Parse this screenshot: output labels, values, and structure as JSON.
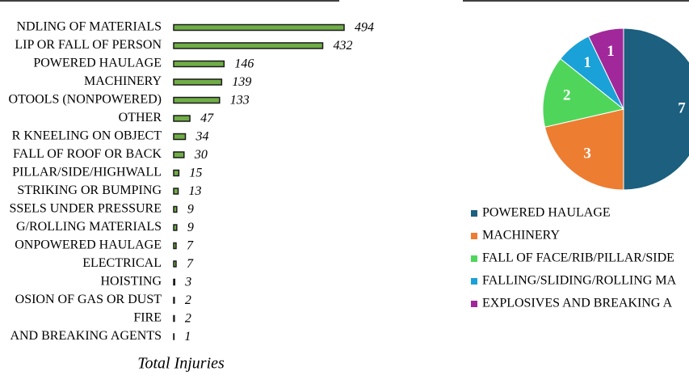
{
  "chart_data": [
    {
      "type": "hbar",
      "xlabel": "Total Injuries",
      "color": "#70ad47",
      "categories": [
        "NDLING OF MATERIALS",
        "LIP OR FALL OF PERSON",
        "POWERED HAULAGE",
        "MACHINERY",
        "OTOOLS (NONPOWERED)",
        "OTHER",
        "R KNEELING ON OBJECT",
        "FALL OF ROOF OR BACK",
        "PILLAR/SIDE/HIGHWALL",
        "STRIKING OR BUMPING",
        "SSELS UNDER PRESSURE",
        "G/ROLLING MATERIALS",
        "ONPOWERED HAULAGE",
        "ELECTRICAL",
        "HOISTING",
        "OSION OF GAS OR DUST",
        "FIRE",
        "AND BREAKING AGENTS"
      ],
      "values": [
        494,
        432,
        146,
        139,
        133,
        47,
        34,
        30,
        15,
        13,
        9,
        9,
        7,
        7,
        3,
        2,
        2,
        1
      ]
    },
    {
      "type": "pie",
      "categories": [
        "POWERED HAULAGE",
        "MACHINERY",
        "FALL OF FACE/RIB/PILLAR/SIDE",
        "FALLING/SLIDING/ROLLING MA",
        "EXPLOSIVES AND BREAKING A"
      ],
      "values": [
        7,
        3,
        2,
        1,
        1
      ],
      "colors": [
        "#1c5f7f",
        "#ed7d31",
        "#4fd65a",
        "#1aa1d8",
        "#a0289a"
      ]
    }
  ]
}
